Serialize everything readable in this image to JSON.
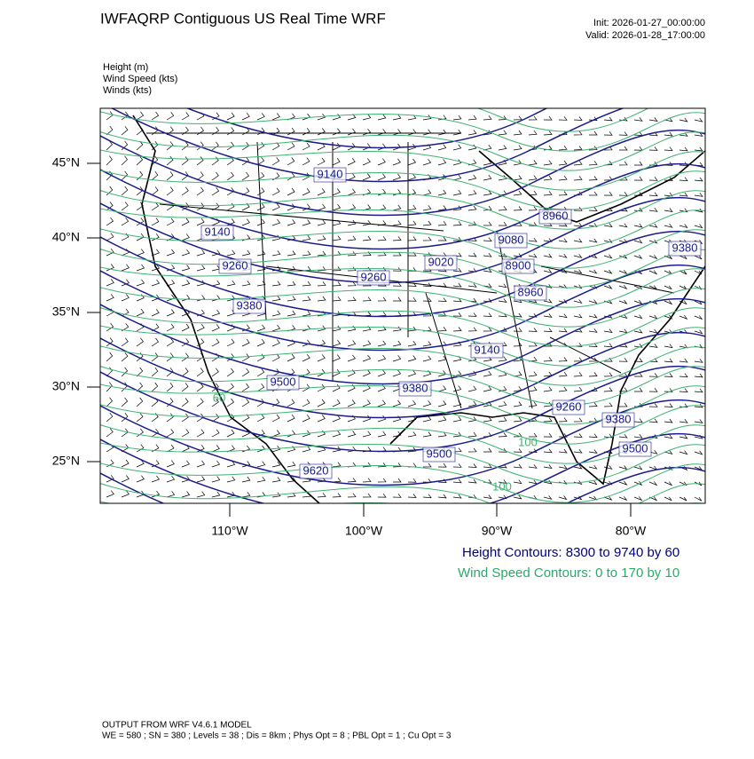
{
  "header": {
    "title": "IWFAQRP Contiguous US Real Time WRF",
    "init": "Init: 2026-01-27_00:00:00",
    "valid": "Valid: 2026-01-28_17:00:00",
    "fields": [
      "Height   (m)",
      "Wind Speed   (kts)",
      "Winds   (kts)"
    ]
  },
  "map": {
    "lat_labels": [
      "45°N",
      "40°N",
      "35°N",
      "30°N",
      "25°N"
    ],
    "lon_labels": [
      "110°W",
      "100°W",
      "90°W",
      "80°W"
    ],
    "height_contour_labels": [
      "9140",
      "9140",
      "9260",
      "9260",
      "9380",
      "9500",
      "9380",
      "9620",
      "9500",
      "9140",
      "9020",
      "9080",
      "8960",
      "8900",
      "8960",
      "9260",
      "9380",
      "9500",
      "9380"
    ],
    "wind_contour_labels": [
      "60",
      "100",
      "100"
    ]
  },
  "legend": {
    "height": "Height Contours: 8300 to 9740 by 60",
    "wind": "Wind Speed Contours: 0 to 170 by 10"
  },
  "footer": {
    "line1": "OUTPUT FROM WRF V4.6.1 MODEL",
    "line2": "WE = 580 ; SN = 380 ; Levels = 38 ; Dis = 8km ; Phys Opt = 8 ; PBL Opt = 1 ; Cu Opt = 3"
  }
}
